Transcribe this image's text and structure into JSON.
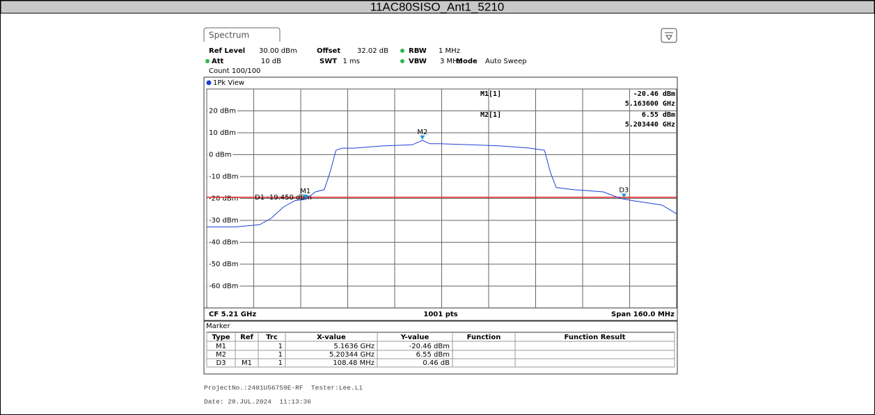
{
  "header": {
    "title": "11AC80SISO_Ant1_5210"
  },
  "tab": "Spectrum",
  "settings": [
    {
      "label": "Ref Level",
      "value": "30.00 dBm"
    },
    {
      "label": "Offset",
      "value": "32.02 dB"
    },
    {
      "label": "RBW",
      "value": "1 MHz"
    },
    {
      "label": "Att",
      "value": "10 dB"
    },
    {
      "label": "SWT",
      "value": "1 ms"
    },
    {
      "label": "VBW",
      "value": "3 MHz"
    },
    {
      "label": "Mode",
      "value": "Auto Sweep"
    }
  ],
  "count": "Count 100/100",
  "view": "1Pk View",
  "readout": [
    {
      "name": "M1[1]",
      "level": "-20.46 dBm",
      "freq": "5.163600 GHz"
    },
    {
      "name": "M2[1]",
      "level": "6.55 dBm",
      "freq": "5.203440 GHz"
    }
  ],
  "chart_data": {
    "type": "line",
    "xlim": [
      5.13,
      5.29
    ],
    "ylim": [
      -70,
      30
    ],
    "yticks": [
      {
        "value": 20,
        "label": "20 dBm"
      },
      {
        "value": 10,
        "label": "10 dBm"
      },
      {
        "value": 0,
        "label": "0 dBm"
      },
      {
        "value": -10,
        "label": "-10 dBm"
      },
      {
        "value": -20,
        "label": "-20 dBm"
      },
      {
        "value": -30,
        "label": "-30 dBm"
      },
      {
        "value": -40,
        "label": "-40 dBm"
      },
      {
        "value": -50,
        "label": "-50 dBm"
      },
      {
        "value": -60,
        "label": "-60 dBm"
      }
    ],
    "grid": true,
    "series": [
      {
        "name": "1Pk",
        "color": "#1f3fd6",
        "x": [
          5.13,
          5.14,
          5.148,
          5.152,
          5.156,
          5.16,
          5.1636,
          5.167,
          5.17,
          5.172,
          5.174,
          5.176,
          5.18,
          5.19,
          5.2,
          5.20344,
          5.206,
          5.21,
          5.22,
          5.23,
          5.24,
          5.245,
          5.247,
          5.249,
          5.255,
          5.265,
          5.271,
          5.275,
          5.28,
          5.285,
          5.29
        ],
        "values": [
          -33,
          -33,
          -32,
          -29,
          -24,
          -21,
          -20.46,
          -17,
          -16,
          -8,
          2,
          3,
          3,
          4,
          4.5,
          6.55,
          5,
          5,
          4.5,
          4,
          3,
          2,
          -8,
          -15,
          -16,
          -17,
          -20,
          -21,
          -22,
          -23,
          -27
        ]
      }
    ],
    "threshold": {
      "label": "D1 -19.450 dBm",
      "value": -19.45,
      "color": "#e02020"
    },
    "markers": [
      {
        "name": "M1",
        "x": 5.1636,
        "y": -20.46
      },
      {
        "name": "M2",
        "x": 5.20344,
        "y": 6.55
      },
      {
        "name": "D3",
        "x": 5.27208,
        "y": -20
      }
    ],
    "marker_color": "#1a9ad6",
    "footer": {
      "left": "CF 5.21 GHz",
      "center": "1001 pts",
      "right": "Span 160.0 MHz"
    }
  },
  "table": {
    "title": "Marker",
    "columns": [
      "Type",
      "Ref",
      "Trc",
      "X-value",
      "Y-value",
      "Function",
      "Function Result"
    ],
    "rows": [
      [
        "M1",
        null,
        "1",
        "5.1636 GHz",
        "-20.46 dBm",
        null,
        null
      ],
      [
        "M2",
        null,
        "1",
        "5.20344 GHz",
        "6.55 dBm",
        null,
        null
      ],
      [
        "D3",
        "M1",
        "1",
        "108.48 MHz",
        "0.46 dB",
        null,
        null
      ]
    ]
  },
  "notes": [
    "ProjectNo.:2401U56759E-RF  Tester:Lee.Li",
    "Date: 28.JUL.2024  11:13:36"
  ]
}
